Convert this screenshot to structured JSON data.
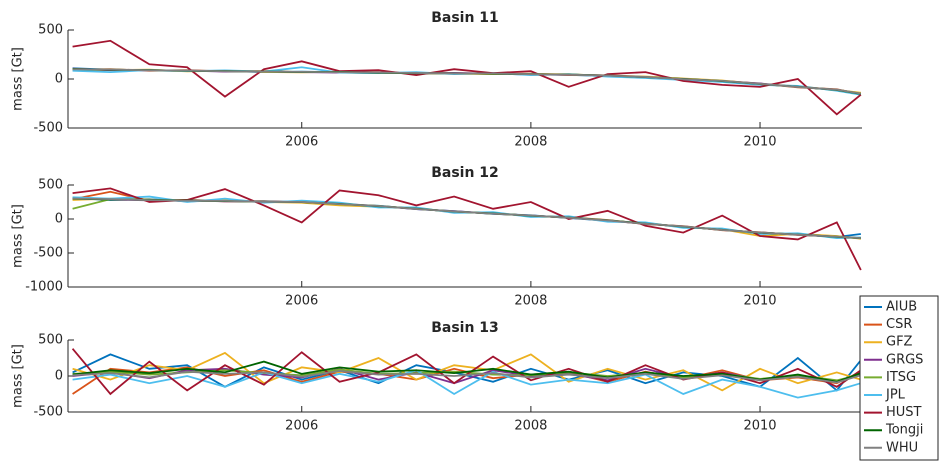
{
  "chart_data": [
    {
      "type": "line",
      "title": "Basin 11",
      "ylabel": "mass [Gt]",
      "x": [
        2004.0,
        2004.33,
        2004.67,
        2005.0,
        2005.33,
        2005.67,
        2006.0,
        2006.33,
        2006.67,
        2007.0,
        2007.33,
        2007.67,
        2008.0,
        2008.33,
        2008.67,
        2009.0,
        2009.33,
        2009.67,
        2010.0,
        2010.33,
        2010.67,
        2010.88
      ],
      "xlim": [
        2003.96,
        2010.89
      ],
      "xticks": [
        2006,
        2008,
        2010
      ],
      "ylim": [
        -500,
        500
      ],
      "yticks": [
        -500,
        0,
        500
      ],
      "series": [
        {
          "name": "AIUB",
          "color": "#0072BD",
          "values": [
            110,
            95,
            88,
            80,
            82,
            70,
            75,
            68,
            60,
            62,
            55,
            58,
            48,
            42,
            30,
            18,
            2,
            -25,
            -55,
            -78,
            -115,
            -145
          ]
        },
        {
          "name": "CSR",
          "color": "#D95319",
          "values": [
            95,
            100,
            85,
            90,
            78,
            80,
            70,
            72,
            68,
            58,
            60,
            52,
            55,
            40,
            38,
            22,
            -5,
            -18,
            -48,
            -85,
            -105,
            -155
          ]
        },
        {
          "name": "GFZ",
          "color": "#EDB120",
          "values": [
            90,
            92,
            95,
            78,
            85,
            72,
            68,
            75,
            62,
            60,
            55,
            50,
            52,
            48,
            32,
            25,
            5,
            -15,
            -52,
            -75,
            -112,
            -140
          ]
        },
        {
          "name": "GRGS",
          "color": "#7E2F8E",
          "values": [
            105,
            90,
            88,
            86,
            76,
            78,
            70,
            65,
            66,
            58,
            62,
            55,
            45,
            44,
            36,
            15,
            0,
            -22,
            -45,
            -82,
            -108,
            -150
          ]
        },
        {
          "name": "ITSG",
          "color": "#77AC30",
          "values": [
            100,
            96,
            90,
            84,
            80,
            74,
            73,
            70,
            64,
            61,
            57,
            54,
            51,
            45,
            34,
            20,
            -1,
            -20,
            -50,
            -80,
            -110,
            -148
          ]
        },
        {
          "name": "JPL",
          "color": "#4DBEEE",
          "values": [
            85,
            70,
            92,
            80,
            88,
            76,
            120,
            65,
            60,
            70,
            50,
            60,
            40,
            50,
            25,
            10,
            -10,
            -30,
            -60,
            -70,
            -120,
            -160
          ]
        },
        {
          "name": "HUST",
          "color": "#A2142F",
          "values": [
            330,
            390,
            150,
            120,
            -180,
            100,
            180,
            80,
            90,
            40,
            100,
            60,
            80,
            -80,
            50,
            70,
            -20,
            -60,
            -80,
            0,
            -360,
            -160
          ]
        },
        {
          "name": "Tongji",
          "color": "#006400",
          "values": [
            102,
            94,
            92,
            83,
            81,
            76,
            71,
            72,
            63,
            59,
            59,
            53,
            50,
            46,
            36,
            19,
            1,
            -21,
            -51,
            -79,
            -112,
            -152
          ]
        },
        {
          "name": "WHU",
          "color": "#808080",
          "values": [
            98,
            97,
            89,
            86,
            79,
            75,
            73,
            69,
            66,
            61,
            57,
            56,
            49,
            44,
            35,
            21,
            -2,
            -19,
            -49,
            -81,
            -109,
            -149
          ]
        }
      ]
    },
    {
      "type": "line",
      "title": "Basin 12",
      "ylabel": "mass [Gt]",
      "x": [
        2004.0,
        2004.33,
        2004.67,
        2005.0,
        2005.33,
        2005.67,
        2006.0,
        2006.33,
        2006.67,
        2007.0,
        2007.33,
        2007.67,
        2008.0,
        2008.33,
        2008.67,
        2009.0,
        2009.33,
        2009.67,
        2010.0,
        2010.33,
        2010.67,
        2010.88
      ],
      "xlim": [
        2003.96,
        2010.89
      ],
      "xticks": [
        2006,
        2008,
        2010
      ],
      "ylim": [
        -1000,
        500
      ],
      "yticks": [
        -1000,
        -500,
        0,
        500
      ],
      "series": [
        {
          "name": "AIUB",
          "color": "#0072BD",
          "values": [
            310,
            280,
            290,
            260,
            270,
            250,
            255,
            215,
            195,
            145,
            115,
            75,
            55,
            15,
            -25,
            -65,
            -115,
            -155,
            -205,
            -225,
            -265,
            -220
          ]
        },
        {
          "name": "CSR",
          "color": "#D95319",
          "values": [
            290,
            400,
            270,
            280,
            260,
            260,
            245,
            225,
            185,
            155,
            105,
            85,
            45,
            25,
            -15,
            -75,
            -105,
            -165,
            -195,
            -235,
            -255,
            -285
          ]
        },
        {
          "name": "GFZ",
          "color": "#EDB120",
          "values": [
            280,
            300,
            285,
            265,
            275,
            250,
            240,
            200,
            180,
            160,
            100,
            90,
            40,
            30,
            -30,
            -60,
            -120,
            -150,
            -250,
            -220,
            -250,
            -290
          ]
        },
        {
          "name": "GRGS",
          "color": "#7E2F8E",
          "values": [
            305,
            285,
            275,
            275,
            260,
            260,
            250,
            225,
            190,
            145,
            115,
            78,
            52,
            18,
            -22,
            -72,
            -108,
            -162,
            -198,
            -232,
            -262,
            -278
          ]
        },
        {
          "name": "ITSG",
          "color": "#77AC30",
          "values": [
            150,
            292,
            282,
            268,
            266,
            254,
            252,
            218,
            192,
            150,
            110,
            80,
            50,
            20,
            -20,
            -70,
            -110,
            -160,
            -200,
            -230,
            -260,
            -280
          ]
        },
        {
          "name": "JPL",
          "color": "#4DBEEE",
          "values": [
            320,
            300,
            330,
            250,
            300,
            240,
            270,
            240,
            170,
            170,
            90,
            100,
            30,
            40,
            -40,
            -50,
            -130,
            -140,
            -220,
            -210,
            -280,
            -270
          ]
        },
        {
          "name": "HUST",
          "color": "#A2142F",
          "values": [
            380,
            450,
            250,
            280,
            440,
            200,
            -50,
            420,
            350,
            200,
            330,
            150,
            250,
            0,
            120,
            -100,
            -200,
            50,
            -250,
            -300,
            -50,
            -750
          ]
        },
        {
          "name": "Tongji",
          "color": "#006400",
          "values": [
            298,
            288,
            282,
            272,
            263,
            256,
            248,
            222,
            188,
            152,
            108,
            82,
            48,
            22,
            -18,
            -68,
            -112,
            -158,
            -202,
            -228,
            -262,
            -282
          ]
        },
        {
          "name": "WHU",
          "color": "#808080",
          "values": [
            302,
            292,
            278,
            268,
            267,
            253,
            251,
            219,
            191,
            149,
            111,
            79,
            51,
            19,
            -21,
            -71,
            -109,
            -161,
            -199,
            -231,
            -259,
            -281
          ]
        }
      ]
    },
    {
      "type": "line",
      "title": "Basin 13",
      "ylabel": "mass [Gt]",
      "x": [
        2004.0,
        2004.33,
        2004.67,
        2005.0,
        2005.33,
        2005.67,
        2006.0,
        2006.33,
        2006.67,
        2007.0,
        2007.33,
        2007.67,
        2008.0,
        2008.33,
        2008.67,
        2009.0,
        2009.33,
        2009.67,
        2010.0,
        2010.33,
        2010.67,
        2010.88
      ],
      "xlim": [
        2003.96,
        2010.89
      ],
      "xticks": [
        2006,
        2008,
        2010
      ],
      "ylim": [
        -500,
        500
      ],
      "yticks": [
        -500,
        0,
        500
      ],
      "series": [
        {
          "name": "AIUB",
          "color": "#0072BD",
          "values": [
            50,
            300,
            100,
            150,
            -150,
            120,
            -50,
            80,
            -100,
            150,
            50,
            -80,
            100,
            -50,
            80,
            -100,
            50,
            0,
            -150,
            250,
            -200,
            220
          ]
        },
        {
          "name": "CSR",
          "color": "#D95319",
          "values": [
            -250,
            100,
            50,
            120,
            0,
            80,
            -80,
            60,
            30,
            -50,
            100,
            -30,
            20,
            50,
            -80,
            60,
            -40,
            80,
            -60,
            -20,
            -100,
            60
          ]
        },
        {
          "name": "GFZ",
          "color": "#EDB120",
          "values": [
            100,
            -50,
            150,
            80,
            320,
            -100,
            120,
            50,
            250,
            -50,
            150,
            80,
            300,
            -80,
            100,
            -50,
            80,
            -200,
            100,
            -100,
            50,
            -50
          ]
        },
        {
          "name": "GRGS",
          "color": "#7E2F8E",
          "values": [
            0,
            50,
            -30,
            80,
            100,
            20,
            -20,
            100,
            -50,
            50,
            -100,
            80,
            0,
            30,
            -60,
            100,
            -30,
            50,
            -50,
            0,
            -80,
            30
          ]
        },
        {
          "name": "ITSG",
          "color": "#77AC30",
          "values": [
            30,
            60,
            20,
            50,
            80,
            40,
            10,
            90,
            30,
            40,
            60,
            20,
            10,
            50,
            0,
            40,
            -20,
            30,
            -40,
            10,
            -60,
            20
          ]
        },
        {
          "name": "JPL",
          "color": "#4DBEEE",
          "values": [
            -50,
            20,
            -100,
            0,
            -150,
            50,
            -100,
            30,
            -80,
            80,
            -250,
            60,
            -120,
            -50,
            -100,
            20,
            -250,
            -50,
            -150,
            -300,
            -200,
            -100
          ]
        },
        {
          "name": "HUST",
          "color": "#A2142F",
          "values": [
            380,
            -250,
            200,
            -200,
            150,
            -120,
            330,
            -80,
            50,
            300,
            -100,
            270,
            -60,
            100,
            -80,
            150,
            -50,
            50,
            -100,
            100,
            -150,
            80
          ]
        },
        {
          "name": "Tongji",
          "color": "#006400",
          "values": [
            20,
            80,
            40,
            100,
            50,
            200,
            30,
            120,
            60,
            80,
            40,
            100,
            20,
            60,
            -20,
            50,
            0,
            30,
            -50,
            20,
            -80,
            40
          ]
        },
        {
          "name": "WHU",
          "color": "#808080",
          "values": [
            10,
            40,
            -20,
            60,
            30,
            50,
            -10,
            70,
            20,
            30,
            0,
            40,
            -20,
            20,
            -30,
            30,
            -40,
            10,
            -60,
            -10,
            -90,
            10
          ]
        }
      ]
    }
  ]
}
